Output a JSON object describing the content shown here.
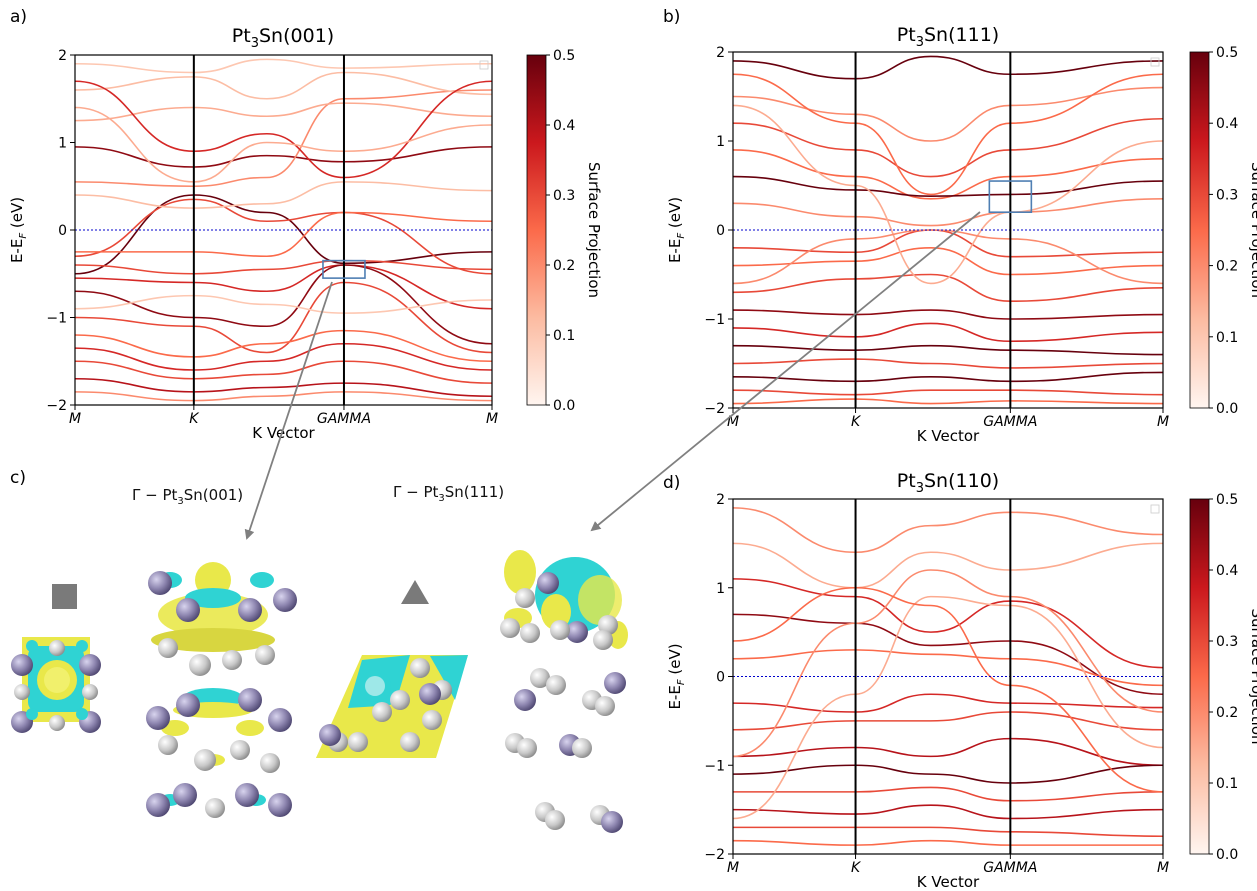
{
  "figure": {
    "panel_labels": [
      "a)",
      "b)",
      "c)",
      "d)"
    ],
    "ylabel": "E-E",
    "ylabel_sub": "F",
    "ylabel_unit": " (eV)",
    "xlabel": "K Vector",
    "colorbar_label": "Surface Projection",
    "colorbar_ticks": [
      "0.0",
      "0.1",
      "0.2",
      "0.3",
      "0.4",
      "0.5"
    ],
    "colormap": [
      "#fff5f0",
      "#fcbba1",
      "#fb6a4a",
      "#cb181d",
      "#67000d"
    ],
    "fermi_line_color": "#0000cc",
    "box_color": "#4f7fb3",
    "arrow_color": "#808080"
  },
  "chart_data": [
    {
      "type": "line",
      "title_main": "Pt",
      "title_sub": "3",
      "title_rest": "Sn(001)",
      "x_ticks": [
        "M",
        "K",
        "GAMMA",
        "M"
      ],
      "ylim": [
        -2,
        2
      ],
      "y_ticks": [
        "−2",
        "−1",
        "0",
        "1",
        "2"
      ],
      "fermi_level": 0,
      "highlight_box": {
        "k": "GAMMA",
        "e_range": [
          -0.55,
          -0.35
        ]
      },
      "bands": [
        {
          "y": [
            0.95,
            0.72,
            0.85,
            0.78,
            0.95
          ],
          "w": 0.45
        },
        {
          "y": [
            0.55,
            0.5,
            0.6,
            1.5,
            1.6
          ],
          "w": 0.2
        },
        {
          "y": [
            -0.5,
            0.4,
            0.2,
            -0.38,
            -0.25
          ],
          "w": 0.5
        },
        {
          "y": [
            -0.3,
            0.35,
            0.1,
            0.2,
            -0.5
          ],
          "w": 0.3
        },
        {
          "y": [
            -0.25,
            -0.25,
            -0.3,
            0.2,
            0.1
          ],
          "w": 0.25
        },
        {
          "y": [
            -0.4,
            -0.5,
            -0.45,
            -0.35,
            -0.45
          ],
          "w": 0.3
        },
        {
          "y": [
            -0.55,
            -0.6,
            -0.7,
            -0.4,
            -0.9
          ],
          "w": 0.35
        },
        {
          "y": [
            -0.7,
            -1.0,
            -1.1,
            -0.4,
            -1.3
          ],
          "w": 0.45
        },
        {
          "y": [
            -1.0,
            -1.1,
            -1.4,
            -0.6,
            -1.4
          ],
          "w": 0.3
        },
        {
          "y": [
            -1.2,
            -1.45,
            -1.3,
            -1.15,
            -1.5
          ],
          "w": 0.25
        },
        {
          "y": [
            -1.35,
            -1.6,
            -1.5,
            -1.3,
            -1.6
          ],
          "w": 0.35
        },
        {
          "y": [
            -1.5,
            -1.7,
            -1.65,
            -1.5,
            -1.75
          ],
          "w": 0.3
        },
        {
          "y": [
            -1.7,
            -1.85,
            -1.8,
            -1.75,
            -1.9
          ],
          "w": 0.4
        },
        {
          "y": [
            -1.85,
            -1.95,
            -1.9,
            -1.85,
            -1.95
          ],
          "w": 0.2
        },
        {
          "y": [
            1.25,
            1.4,
            1.3,
            1.45,
            1.3
          ],
          "w": 0.15
        },
        {
          "y": [
            1.6,
            1.75,
            1.5,
            1.8,
            1.55
          ],
          "w": 0.12
        },
        {
          "y": [
            1.9,
            1.8,
            1.95,
            1.85,
            1.9
          ],
          "w": 0.1
        },
        {
          "y": [
            0.4,
            0.25,
            0.3,
            0.55,
            0.45
          ],
          "w": 0.12
        },
        {
          "y": [
            -0.9,
            -0.75,
            -0.85,
            -0.95,
            -0.8
          ],
          "w": 0.1
        },
        {
          "y": [
            1.7,
            0.9,
            1.1,
            0.6,
            1.7
          ],
          "w": 0.35
        },
        {
          "y": [
            1.4,
            0.55,
            1.0,
            0.9,
            1.2
          ],
          "w": 0.15
        }
      ]
    },
    {
      "type": "line",
      "title_main": "Pt",
      "title_sub": "3",
      "title_rest": "Sn(111)",
      "x_ticks": [
        "M",
        "K",
        "GAMMA",
        "M"
      ],
      "ylim": [
        -2,
        2
      ],
      "y_ticks": [
        "−2",
        "−1",
        "0",
        "1",
        "2"
      ],
      "fermi_level": 0,
      "highlight_box": {
        "k": "GAMMA",
        "e_range": [
          0.2,
          0.55
        ]
      },
      "bands": [
        {
          "y": [
            1.9,
            1.7,
            1.95,
            1.75,
            1.9
          ],
          "w": 0.5
        },
        {
          "y": [
            1.5,
            1.3,
            1.0,
            1.4,
            1.6
          ],
          "w": 0.2
        },
        {
          "y": [
            1.2,
            0.9,
            0.6,
            0.9,
            1.25
          ],
          "w": 0.3
        },
        {
          "y": [
            0.9,
            0.6,
            0.35,
            0.6,
            0.8
          ],
          "w": 0.25
        },
        {
          "y": [
            0.6,
            0.45,
            0.38,
            0.4,
            0.55
          ],
          "w": 0.5
        },
        {
          "y": [
            0.3,
            0.15,
            0.05,
            0.2,
            0.35
          ],
          "w": 0.2
        },
        {
          "y": [
            -0.2,
            -0.25,
            0.0,
            -0.3,
            -0.25
          ],
          "w": 0.3
        },
        {
          "y": [
            -0.4,
            -0.35,
            -0.2,
            -0.5,
            -0.4
          ],
          "w": 0.25
        },
        {
          "y": [
            -0.7,
            -0.55,
            -0.5,
            -0.8,
            -0.65
          ],
          "w": 0.3
        },
        {
          "y": [
            -0.9,
            -0.95,
            -0.9,
            -1.0,
            -0.95
          ],
          "w": 0.45
        },
        {
          "y": [
            -1.1,
            -1.2,
            -1.05,
            -1.25,
            -1.15
          ],
          "w": 0.35
        },
        {
          "y": [
            -1.3,
            -1.35,
            -1.3,
            -1.35,
            -1.4
          ],
          "w": 0.5
        },
        {
          "y": [
            -1.5,
            -1.45,
            -1.5,
            -1.55,
            -1.5
          ],
          "w": 0.3
        },
        {
          "y": [
            -1.65,
            -1.7,
            -1.65,
            -1.7,
            -1.6
          ],
          "w": 0.55
        },
        {
          "y": [
            -1.8,
            -1.85,
            -1.8,
            -1.8,
            -1.85
          ],
          "w": 0.3
        },
        {
          "y": [
            -1.95,
            -1.9,
            -1.95,
            -1.92,
            -1.95
          ],
          "w": 0.25
        },
        {
          "y": [
            1.75,
            1.2,
            0.4,
            1.2,
            1.75
          ],
          "w": 0.25
        },
        {
          "y": [
            1.4,
            0.5,
            -0.6,
            0.2,
            1.0
          ],
          "w": 0.15
        },
        {
          "y": [
            -0.6,
            -0.1,
            0.0,
            -0.1,
            -0.6
          ],
          "w": 0.2
        }
      ]
    },
    {
      "type": "line",
      "title_main": "Pt",
      "title_sub": "3",
      "title_rest": "Sn(110)",
      "x_ticks": [
        "M",
        "K",
        "GAMMA",
        "M"
      ],
      "ylim": [
        -2,
        2
      ],
      "y_ticks": [
        "−2",
        "−1",
        "0",
        "1",
        "2"
      ],
      "fermi_level": 0,
      "bands": [
        {
          "y": [
            1.9,
            1.4,
            1.7,
            1.85,
            1.6
          ],
          "w": 0.2
        },
        {
          "y": [
            1.5,
            1.0,
            1.4,
            1.2,
            1.5
          ],
          "w": 0.15
        },
        {
          "y": [
            1.1,
            0.9,
            0.5,
            0.85,
            0.1
          ],
          "w": 0.35
        },
        {
          "y": [
            0.7,
            0.6,
            0.35,
            0.4,
            -0.2
          ],
          "w": 0.45
        },
        {
          "y": [
            0.2,
            0.3,
            0.25,
            0.2,
            -0.1
          ],
          "w": 0.25
        },
        {
          "y": [
            -0.3,
            -0.4,
            -0.2,
            -0.3,
            -0.35
          ],
          "w": 0.35
        },
        {
          "y": [
            -0.6,
            -0.5,
            -0.5,
            -0.4,
            -0.6
          ],
          "w": 0.3
        },
        {
          "y": [
            -0.9,
            -0.8,
            -0.9,
            -0.7,
            -1.0
          ],
          "w": 0.4
        },
        {
          "y": [
            -1.1,
            -1.0,
            -1.1,
            -1.2,
            -1.0
          ],
          "w": 0.55
        },
        {
          "y": [
            -1.3,
            -1.3,
            -1.25,
            -1.4,
            -1.3
          ],
          "w": 0.3
        },
        {
          "y": [
            -1.5,
            -1.55,
            -1.45,
            -1.6,
            -1.5
          ],
          "w": 0.4
        },
        {
          "y": [
            -1.7,
            -1.7,
            -1.7,
            -1.75,
            -1.8
          ],
          "w": 0.3
        },
        {
          "y": [
            -1.85,
            -1.9,
            -1.85,
            -1.9,
            -1.9
          ],
          "w": 0.25
        },
        {
          "y": [
            -0.9,
            0.6,
            1.2,
            0.9,
            -0.4
          ],
          "w": 0.2
        },
        {
          "y": [
            -1.6,
            -0.2,
            0.9,
            0.8,
            -0.8
          ],
          "w": 0.15
        },
        {
          "y": [
            0.4,
            1.0,
            0.8,
            -0.1,
            -1.3
          ],
          "w": 0.25
        }
      ]
    }
  ],
  "panel_c": {
    "label_001": "Γ − Pt",
    "label_001_sub": "3",
    "label_001_rest": "Sn(001)",
    "label_111": "Γ − Pt",
    "label_111_sub": "3",
    "label_111_rest": "Sn(111)",
    "colors": {
      "pt_atom": "#c8c8c8",
      "sn_atom": "#8e86b0",
      "iso_positive": "#e9e84a",
      "iso_negative": "#2fd3d3",
      "marker": "#7a7a7a"
    }
  }
}
